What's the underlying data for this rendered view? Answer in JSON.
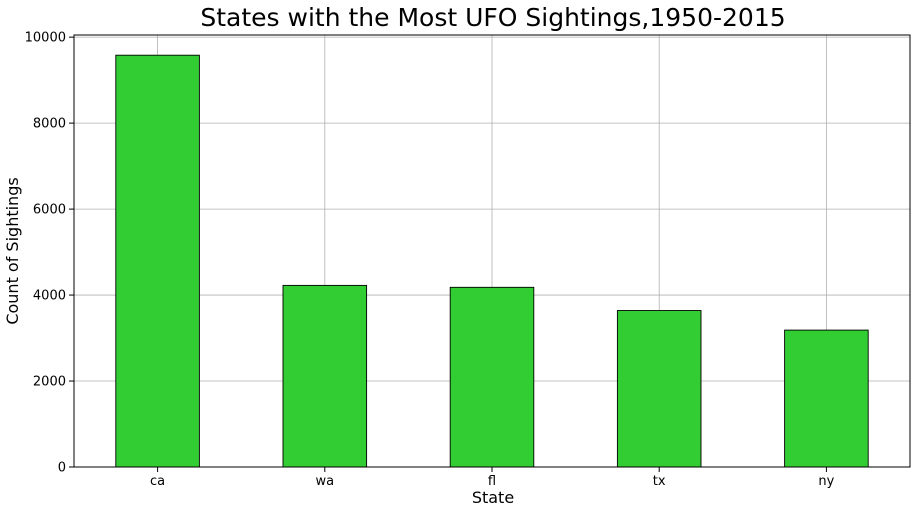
{
  "chart_data": {
    "type": "bar",
    "title": "States with the Most UFO Sightings,1950-2015",
    "xlabel": "State",
    "ylabel": "Count of Sightings",
    "categories": [
      "ca",
      "wa",
      "fl",
      "tx",
      "ny"
    ],
    "values": [
      9580,
      4225,
      4180,
      3640,
      3185
    ],
    "ylim": [
      0,
      10050
    ],
    "yticks": [
      0,
      2000,
      4000,
      6000,
      8000,
      10000
    ],
    "grid": true,
    "bar_color": "#32cd32",
    "edge_color": "#000000"
  }
}
